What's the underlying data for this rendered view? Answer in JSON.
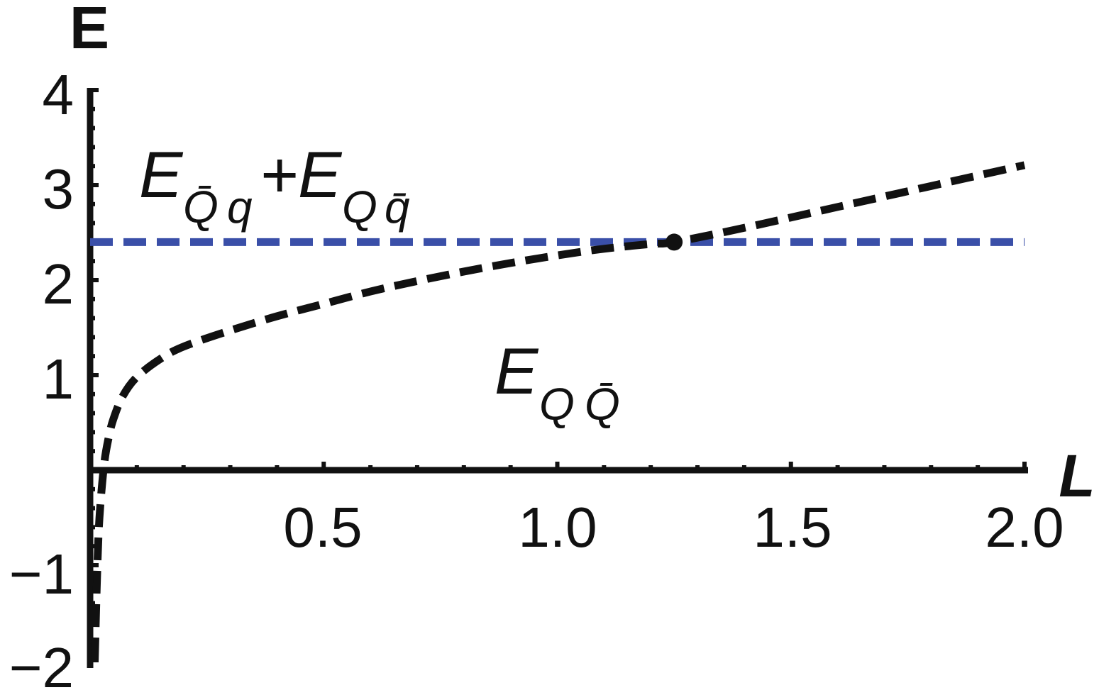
{
  "chart_data": {
    "type": "line",
    "xlabel": "L",
    "ylabel": "E",
    "xlim": [
      0,
      2.0
    ],
    "ylim": [
      -2,
      4
    ],
    "x_ticks": [
      "0.5",
      "1.0",
      "1.5",
      "2.0"
    ],
    "y_ticks": [
      "−2",
      "−1",
      "1",
      "2",
      "3",
      "4"
    ],
    "colors": {
      "curve": "#111111",
      "threshold": "#3a4fa8",
      "axes": "#111111"
    },
    "series": [
      {
        "style": "dashed",
        "x": [
          0.01,
          0.015,
          0.02,
          0.03,
          0.04,
          0.05,
          0.07,
          0.1,
          0.15,
          0.2,
          0.3,
          0.4,
          0.5,
          0.6,
          0.7,
          0.8,
          0.9,
          1.0,
          1.1,
          1.2,
          1.25,
          1.4,
          1.6,
          1.8,
          2.0
        ],
        "y": [
          -2.0,
          -1.1,
          -0.5,
          0.06,
          0.35,
          0.54,
          0.78,
          0.98,
          1.17,
          1.3,
          1.47,
          1.62,
          1.75,
          1.88,
          1.99,
          2.09,
          2.18,
          2.26,
          2.33,
          2.38,
          2.4,
          2.55,
          2.77,
          2.99,
          3.21
        ]
      },
      {
        "style": "dashed",
        "x": [
          0,
          2.0
        ],
        "y": [
          2.4,
          2.4
        ]
      }
    ],
    "points": [
      {
        "x": 1.25,
        "y": 2.4
      }
    ],
    "annotations": {
      "threshold_label": {
        "E1": "E",
        "sub1a": "Q̄",
        "sub1b": "q",
        "plus": "+",
        "E2": "E",
        "sub2a": "Q",
        "sub2b": "q̄"
      },
      "curve_label": {
        "E": "E",
        "sub_a": "Q",
        "sub_b": "Q̄"
      }
    }
  }
}
